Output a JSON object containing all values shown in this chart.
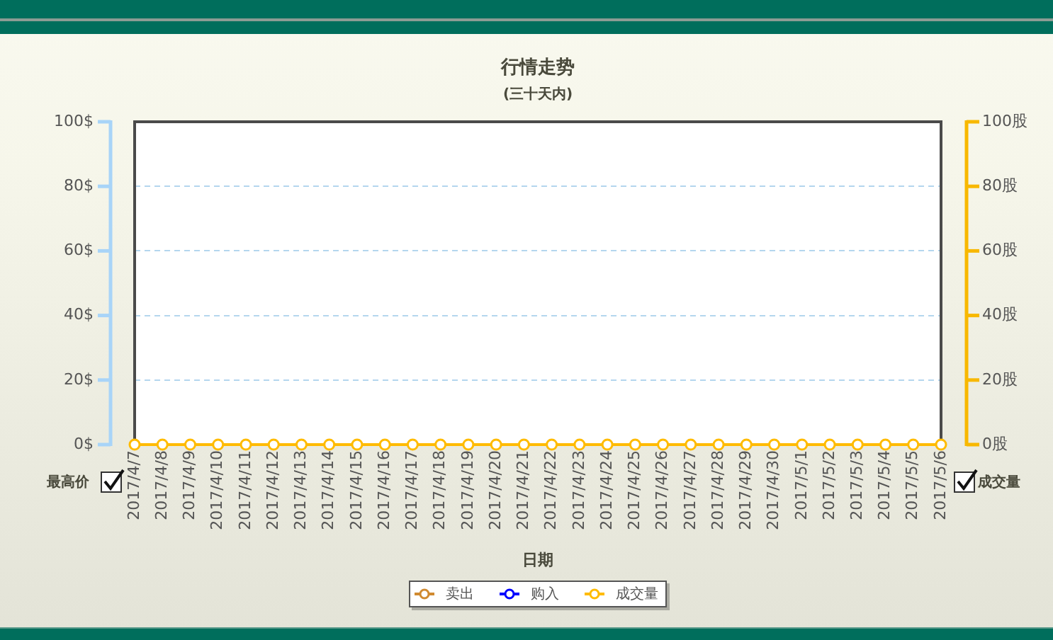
{
  "chart_data": {
    "type": "line",
    "title": "行情走势",
    "subtitle": "(三十天内)",
    "xlabel": "日期",
    "ylabel": "最高价",
    "y2label": "成交量",
    "categories": [
      "2017/4/7",
      "2017/4/8",
      "2017/4/9",
      "2017/4/10",
      "2017/4/11",
      "2017/4/12",
      "2017/4/13",
      "2017/4/14",
      "2017/4/15",
      "2017/4/16",
      "2017/4/17",
      "2017/4/18",
      "2017/4/19",
      "2017/4/20",
      "2017/4/21",
      "2017/4/22",
      "2017/4/23",
      "2017/4/24",
      "2017/4/25",
      "2017/4/26",
      "2017/4/27",
      "2017/4/28",
      "2017/4/29",
      "2017/4/30",
      "2017/5/1",
      "2017/5/2",
      "2017/5/3",
      "2017/5/4",
      "2017/5/5",
      "2017/5/6"
    ],
    "series": [
      {
        "name": "卖出",
        "color": "#d08a30",
        "values": [
          null,
          null,
          null,
          null,
          null,
          null,
          null,
          null,
          null,
          null,
          null,
          null,
          null,
          null,
          null,
          null,
          null,
          null,
          null,
          null,
          null,
          null,
          null,
          null,
          null,
          null,
          null,
          null,
          null,
          null
        ]
      },
      {
        "name": "购入",
        "color": "#0000ff",
        "values": [
          null,
          null,
          null,
          null,
          null,
          null,
          null,
          null,
          null,
          null,
          null,
          null,
          null,
          null,
          null,
          null,
          null,
          null,
          null,
          null,
          null,
          null,
          null,
          null,
          null,
          null,
          null,
          null,
          null,
          null
        ]
      },
      {
        "name": "成交量",
        "color": "#ffbb00",
        "axis": "y2",
        "values": [
          0,
          0,
          0,
          0,
          0,
          0,
          0,
          0,
          0,
          0,
          0,
          0,
          0,
          0,
          0,
          0,
          0,
          0,
          0,
          0,
          0,
          0,
          0,
          0,
          0,
          0,
          0,
          0,
          0,
          0
        ]
      }
    ],
    "ylim": [
      0,
      100
    ],
    "yticks": [
      {
        "value": 0,
        "label": "0$"
      },
      {
        "value": 20,
        "label": "20$"
      },
      {
        "value": 40,
        "label": "40$"
      },
      {
        "value": 60,
        "label": "60$"
      },
      {
        "value": 80,
        "label": "80$"
      },
      {
        "value": 100,
        "label": "100$"
      }
    ],
    "y2lim": [
      0,
      100
    ],
    "y2ticks": [
      {
        "value": 0,
        "label": "0股"
      },
      {
        "value": 20,
        "label": "20股"
      },
      {
        "value": 40,
        "label": "40股"
      },
      {
        "value": 60,
        "label": "60股"
      },
      {
        "value": 80,
        "label": "80股"
      },
      {
        "value": 100,
        "label": "100股"
      }
    ],
    "grid": "y",
    "legend": "bottom",
    "marker": "circle",
    "line_style": "solid"
  }
}
